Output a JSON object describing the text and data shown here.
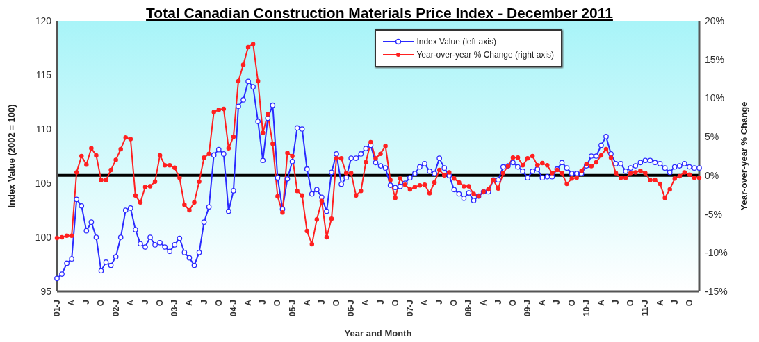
{
  "chart_data": {
    "type": "line",
    "title": "Total Canadian Construction Materials Price Index - December 2011",
    "xlabel": "Year and Month",
    "ylabel": "Index Value (2002 = 100)",
    "y2label": "Year-over-year % Change",
    "categories": [
      "01-J",
      null,
      null,
      "A",
      null,
      null,
      "J",
      null,
      null,
      "O",
      null,
      null,
      "02-J",
      null,
      null,
      "A",
      null,
      null,
      "J",
      null,
      null,
      "O",
      null,
      null,
      "03-J",
      null,
      null,
      "A",
      null,
      null,
      "J",
      null,
      null,
      "O",
      null,
      null,
      "04-J",
      null,
      null,
      "A",
      null,
      null,
      "J",
      null,
      null,
      "O",
      null,
      null,
      "05-J",
      null,
      null,
      "A",
      null,
      null,
      "J",
      null,
      null,
      "O",
      null,
      null,
      "06-J",
      null,
      null,
      "A",
      null,
      null,
      "J",
      null,
      null,
      "O",
      null,
      null,
      "07-J",
      null,
      null,
      "A",
      null,
      null,
      "J",
      null,
      null,
      "O",
      null,
      null,
      "08-J",
      null,
      null,
      "A",
      null,
      null,
      "J",
      null,
      null,
      "O",
      null,
      null,
      "09-J",
      null,
      null,
      "A",
      null,
      null,
      "J",
      null,
      null,
      "O",
      null,
      null,
      "10-J",
      null,
      null,
      "A",
      null,
      null,
      "J",
      null,
      null,
      "O",
      null,
      null,
      "11-J",
      null,
      null,
      "A",
      null,
      null,
      "J",
      null,
      null,
      "O",
      null,
      null
    ],
    "series": [
      {
        "name": "Index Value (left axis)",
        "color": "#2a2aff",
        "values": [
          96.2,
          96.6,
          97.6,
          98.0,
          103.5,
          102.9,
          100.6,
          101.4,
          100.0,
          96.9,
          97.7,
          97.4,
          98.2,
          100.0,
          102.5,
          102.7,
          100.7,
          99.4,
          99.1,
          100.0,
          99.3,
          99.5,
          99.1,
          98.7,
          99.3,
          99.9,
          98.6,
          98.1,
          97.4,
          98.6,
          101.4,
          102.8,
          107.6,
          108.1,
          107.7,
          102.4,
          104.3,
          112.1,
          112.7,
          114.4,
          113.9,
          110.7,
          107.1,
          111.0,
          112.2,
          105.5,
          102.6,
          105.4,
          107.0,
          110.1,
          110.0,
          106.3,
          104.0,
          104.4,
          103.7,
          102.4,
          106.0,
          107.7,
          104.9,
          105.5,
          107.3,
          107.3,
          107.7,
          108.2,
          108.5,
          106.9,
          106.6,
          106.4,
          104.8,
          104.6,
          104.7,
          105.0,
          105.5,
          105.9,
          106.5,
          106.8,
          106.1,
          105.9,
          107.3,
          106.4,
          105.7,
          104.4,
          104.0,
          103.6,
          104.1,
          103.4,
          103.8,
          104.2,
          104.2,
          105.3,
          105.3,
          106.5,
          106.6,
          106.9,
          106.5,
          106.1,
          105.5,
          106.1,
          106.3,
          105.5,
          105.6,
          105.6,
          106.3,
          106.9,
          106.4,
          105.9,
          105.9,
          105.9,
          106.6,
          107.5,
          107.5,
          108.5,
          109.3,
          107.7,
          106.8,
          106.8,
          106.1,
          106.4,
          106.6,
          106.9,
          107.1,
          107.1,
          106.9,
          106.8,
          106.4,
          106.0,
          106.5,
          106.6,
          106.8,
          106.5,
          106.4,
          106.4
        ]
      },
      {
        "name": "Year-over-year % Change (right axis)",
        "color": "#ff2020",
        "axis": "y2",
        "values": [
          -8.1,
          -8.0,
          -7.8,
          -7.8,
          0.4,
          2.5,
          1.4,
          3.5,
          2.6,
          -0.6,
          -0.6,
          0.7,
          2.0,
          3.4,
          4.9,
          4.7,
          -2.6,
          -3.5,
          -1.5,
          -1.4,
          -0.8,
          2.6,
          1.3,
          1.3,
          1.0,
          -0.3,
          -3.8,
          -4.5,
          -3.5,
          -0.8,
          2.3,
          2.8,
          8.2,
          8.5,
          8.6,
          3.5,
          5.0,
          12.2,
          14.3,
          16.6,
          17.0,
          12.2,
          5.5,
          7.9,
          4.1,
          -2.7,
          -4.8,
          2.9,
          2.5,
          -2.0,
          -2.6,
          -7.2,
          -8.9,
          -5.7,
          -3.3,
          -8.0,
          -5.6,
          2.2,
          2.2,
          0.3,
          0.3,
          -2.6,
          -2.0,
          1.7,
          4.3,
          2.2,
          2.8,
          3.8,
          -0.6,
          -2.9,
          -0.4,
          -1.2,
          -1.8,
          -1.5,
          -1.3,
          -1.2,
          -2.3,
          -0.9,
          0.7,
          0.0,
          0.4,
          -0.4,
          -0.9,
          -1.4,
          -1.4,
          -2.4,
          -2.7,
          -2.1,
          -1.8,
          -0.6,
          -1.7,
          0.3,
          1.2,
          2.3,
          2.3,
          1.3,
          2.2,
          2.5,
          1.3,
          1.6,
          1.3,
          0.3,
          0.7,
          0.3,
          -1.1,
          -0.4,
          -0.3,
          0.6,
          1.5,
          1.2,
          1.7,
          2.6,
          3.4,
          2.3,
          0.3,
          -0.3,
          -0.3,
          0.3,
          0.4,
          0.6,
          0.3,
          -0.6,
          -0.6,
          -1.1,
          -2.9,
          -1.8,
          -0.4,
          -0.1,
          0.4,
          0.1,
          -0.3,
          -0.3
        ]
      }
    ],
    "ylim": [
      95,
      120
    ],
    "yticks": [
      95,
      100,
      105,
      110,
      115,
      120
    ],
    "y2lim": [
      -15,
      20
    ],
    "y2ticks": [
      {
        "value": -15,
        "label": "-15%"
      },
      {
        "value": -10,
        "label": "-10%"
      },
      {
        "value": -5,
        "label": "-5%"
      },
      {
        "value": 0,
        "label": "0%"
      },
      {
        "value": 5,
        "label": "5%"
      },
      {
        "value": 10,
        "label": "10%"
      },
      {
        "value": 15,
        "label": "15%"
      },
      {
        "value": 20,
        "label": "20%"
      }
    ],
    "ref_lines": [
      {
        "axis": "y2",
        "value": 0,
        "color": "#000000",
        "line_style": "solid"
      }
    ],
    "marker": "circle",
    "line_style": "solid",
    "legend": "top right",
    "grid": false
  }
}
